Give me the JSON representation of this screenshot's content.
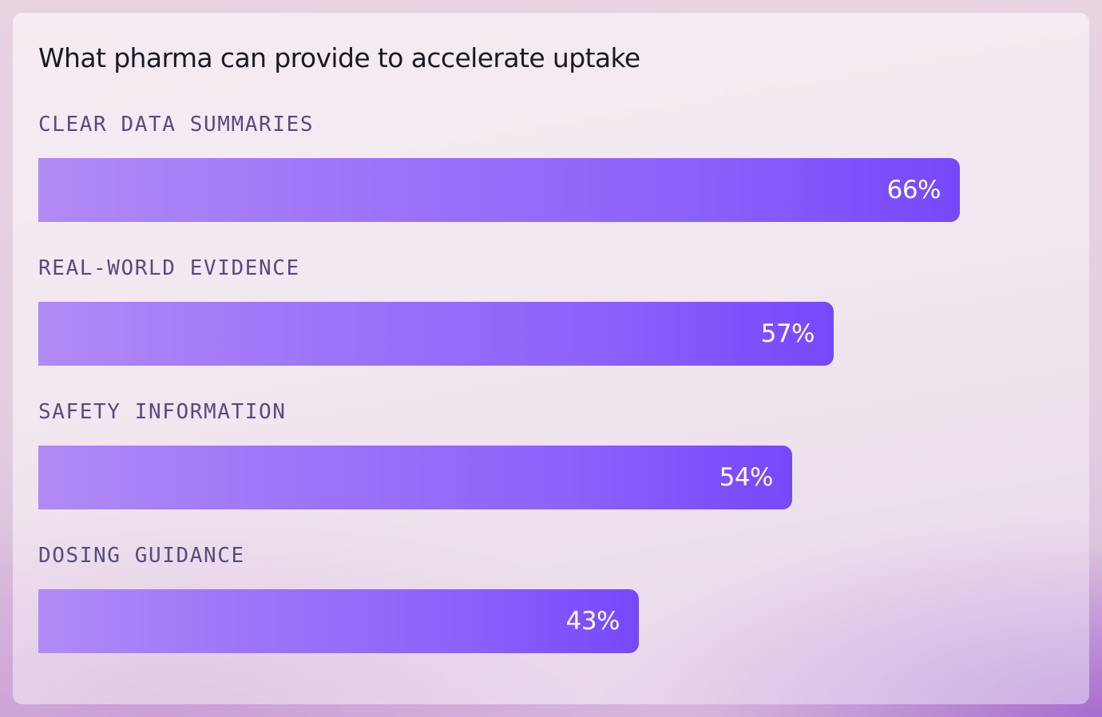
{
  "chart_data": {
    "type": "bar",
    "orientation": "horizontal",
    "title": "What pharma can provide to accelerate uptake",
    "xlabel": "",
    "ylabel": "",
    "xlim": [
      0,
      100
    ],
    "grid": false,
    "categories": [
      "CLEAR DATA SUMMARIES",
      "REAL-WORLD EVIDENCE",
      "SAFETY INFORMATION",
      "DOSING GUIDANCE"
    ],
    "values": [
      66,
      57,
      54,
      43
    ],
    "value_labels": [
      "66%",
      "57%",
      "54%",
      "43%"
    ],
    "colors": {
      "bar_start": "#b18af6",
      "bar_end": "#7648fb",
      "label_text": "#574b7e",
      "title_text": "#1b1a24",
      "value_text": "#ffffff"
    }
  }
}
